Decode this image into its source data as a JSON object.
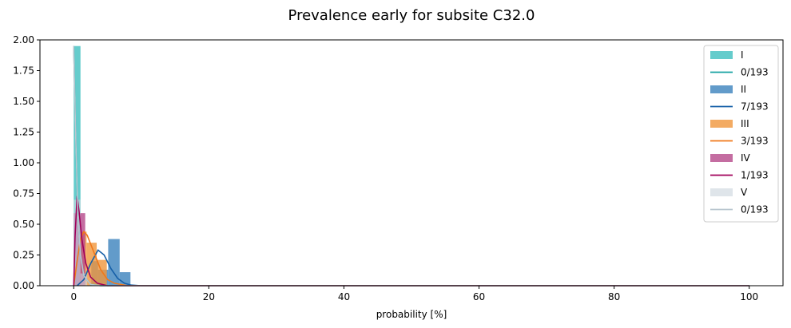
{
  "chart_data": {
    "type": "bar",
    "title": "Prevalence early for subsite C32.0",
    "xlabel": "probability [%]",
    "ylabel": "",
    "xlim": [
      -5,
      105
    ],
    "ylim": [
      0,
      2.0
    ],
    "xticks": [
      0,
      20,
      40,
      60,
      80,
      100
    ],
    "yticks": [
      0.0,
      0.25,
      0.5,
      0.75,
      1.0,
      1.25,
      1.5,
      1.75,
      2.0
    ],
    "ytick_labels": [
      "0.00",
      "0.25",
      "0.50",
      "0.75",
      "1.00",
      "1.25",
      "1.50",
      "1.75",
      "2.00"
    ],
    "grid": false,
    "legend_position": "top-right",
    "series": [
      {
        "name": "I",
        "kind": "histogram",
        "color": "#3fbfbf",
        "alpha": 0.8,
        "bins": [
          [
            0.0,
            1.0,
            1.95
          ]
        ]
      },
      {
        "name": "0/193",
        "kind": "density",
        "color": "#17a2a2",
        "points": [
          [
            0.0,
            1.95
          ],
          [
            0.3,
            1.2
          ],
          [
            0.6,
            0.6
          ],
          [
            1.0,
            0.25
          ],
          [
            1.5,
            0.08
          ],
          [
            2.5,
            0.01
          ],
          [
            4,
            0.0
          ],
          [
            100,
            0.0
          ]
        ]
      },
      {
        "name": "II",
        "kind": "histogram",
        "color": "#3b82bd",
        "alpha": 0.8,
        "bins": [
          [
            2.6,
            3.6,
            0.2
          ],
          [
            3.6,
            5.1,
            0.13
          ],
          [
            5.1,
            6.8,
            0.38
          ],
          [
            6.8,
            8.4,
            0.11
          ]
        ]
      },
      {
        "name": "7/193",
        "kind": "density",
        "color": "#1760a8",
        "points": [
          [
            0.5,
            0.0
          ],
          [
            1.5,
            0.05
          ],
          [
            2.5,
            0.18
          ],
          [
            3.6,
            0.29
          ],
          [
            4.5,
            0.25
          ],
          [
            5.5,
            0.14
          ],
          [
            6.5,
            0.06
          ],
          [
            7.5,
            0.02
          ],
          [
            8.5,
            0.005
          ],
          [
            10,
            0.0
          ],
          [
            100,
            0.0
          ]
        ]
      },
      {
        "name": "III",
        "kind": "histogram",
        "color": "#f0963c",
        "alpha": 0.8,
        "bins": [
          [
            0.8,
            1.9,
            0.44
          ],
          [
            1.9,
            3.4,
            0.35
          ],
          [
            3.4,
            4.9,
            0.21
          ]
        ]
      },
      {
        "name": "3/193",
        "kind": "density",
        "color": "#f0781a",
        "points": [
          [
            0.0,
            0.0
          ],
          [
            0.5,
            0.2
          ],
          [
            1.0,
            0.38
          ],
          [
            1.5,
            0.44
          ],
          [
            2.0,
            0.41
          ],
          [
            3.0,
            0.27
          ],
          [
            4.0,
            0.13
          ],
          [
            5.0,
            0.05
          ],
          [
            6.0,
            0.02
          ],
          [
            8.0,
            0.0
          ],
          [
            100,
            0.0
          ]
        ]
      },
      {
        "name": "IV",
        "kind": "histogram",
        "color": "#b5498a",
        "alpha": 0.8,
        "bins": [
          [
            0.0,
            1.7,
            0.59
          ]
        ]
      },
      {
        "name": "1/193",
        "kind": "density",
        "color": "#a0005a",
        "points": [
          [
            0.0,
            0.0
          ],
          [
            0.2,
            0.4
          ],
          [
            0.5,
            0.73
          ],
          [
            0.8,
            0.6
          ],
          [
            1.2,
            0.38
          ],
          [
            1.8,
            0.18
          ],
          [
            2.5,
            0.07
          ],
          [
            3.5,
            0.02
          ],
          [
            5.0,
            0.0
          ],
          [
            100,
            0.0
          ]
        ]
      },
      {
        "name": "V",
        "kind": "histogram",
        "color": "#c9d4dc",
        "alpha": 0.6,
        "bins": [
          [
            0.0,
            1.0,
            0.7
          ],
          [
            1.0,
            2.0,
            0.1
          ]
        ]
      },
      {
        "name": "0/193",
        "kind": "density",
        "color": "#b8c6cf",
        "points": [
          [
            0.0,
            1.95
          ],
          [
            0.3,
            1.2
          ],
          [
            0.6,
            0.6
          ],
          [
            1.0,
            0.25
          ],
          [
            1.5,
            0.08
          ],
          [
            2.5,
            0.01
          ],
          [
            4,
            0.0
          ],
          [
            100,
            0.0
          ]
        ]
      }
    ]
  }
}
